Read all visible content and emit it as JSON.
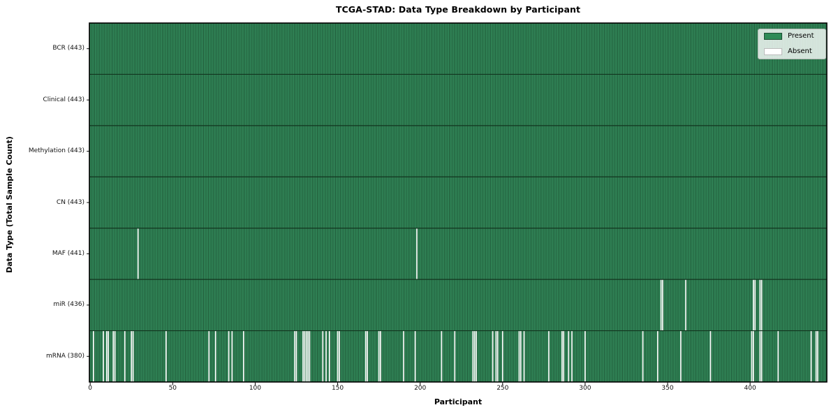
{
  "chart_data": {
    "type": "heatmap",
    "title": "TCGA-STAD: Data Type Breakdown by Participant",
    "xlabel": "Participant",
    "ylabel": "Data Type (Total Sample Count)",
    "n_participants": 443,
    "x_range": [
      -0.5,
      446.5
    ],
    "x_ticks": [
      0,
      50,
      100,
      150,
      200,
      250,
      300,
      350,
      400
    ],
    "grid": false,
    "legend_position": "upper right",
    "legend": [
      {
        "label": "Present",
        "color": "#2e8b57"
      },
      {
        "label": "Absent",
        "color": "#ffffff"
      }
    ],
    "categories": [
      "BCR (443)",
      "Clinical (443)",
      "Methylation (443)",
      "CN (443)",
      "MAF (441)",
      "miR (436)",
      "mRNA (380)"
    ],
    "rows": [
      {
        "label": "BCR (443)",
        "data_type": "BCR",
        "total": 443,
        "absent_participants": []
      },
      {
        "label": "Clinical (443)",
        "data_type": "Clinical",
        "total": 443,
        "absent_participants": []
      },
      {
        "label": "Methylation (443)",
        "data_type": "Methylation",
        "total": 443,
        "absent_participants": []
      },
      {
        "label": "CN (443)",
        "data_type": "CN",
        "total": 443,
        "absent_participants": []
      },
      {
        "label": "MAF (441)",
        "data_type": "MAF",
        "total": 441,
        "absent_participants": [
          29,
          198
        ]
      },
      {
        "label": "miR (436)",
        "data_type": "miR",
        "total": 436,
        "absent_participants": [
          346,
          347,
          361,
          402,
          403,
          406,
          407
        ]
      },
      {
        "label": "mRNA (380)",
        "data_type": "mRNA",
        "total": 380,
        "absent_participants": [
          2,
          8,
          10,
          11,
          14,
          15,
          21,
          25,
          26,
          46,
          72,
          76,
          84,
          86,
          93,
          124,
          125,
          129,
          130,
          131,
          132,
          133,
          141,
          143,
          145,
          150,
          151,
          167,
          168,
          175,
          176,
          190,
          197,
          213,
          221,
          232,
          233,
          234,
          244,
          246,
          247,
          250,
          260,
          261,
          263,
          278,
          286,
          287,
          290,
          292,
          300,
          335,
          344,
          358,
          376,
          401,
          402,
          406,
          407,
          417,
          437,
          440,
          441
        ]
      }
    ],
    "colors": {
      "present_fill": "#35905f",
      "bar_edge": "#1d5233",
      "absent": "#ffffff",
      "row_divider": "#12351f",
      "plot_border": "#000000",
      "legend_border": "#b3b8b3"
    }
  }
}
